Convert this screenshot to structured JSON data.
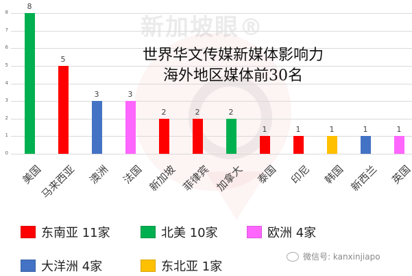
{
  "watermark": {
    "text": "新加坡眼®"
  },
  "chart_data": {
    "type": "bar",
    "title": "世界华文传媒新媒体影响力 海外地区媒体前30名",
    "title_lines": [
      "世界华文传媒新媒体影响力",
      "海外地区媒体前30名"
    ],
    "xlabel": "",
    "ylabel": "",
    "ylim": [
      0,
      8
    ],
    "yticks": [
      "0",
      "1",
      "2",
      "3",
      "4",
      "5",
      "6",
      "7",
      "8"
    ],
    "grid": true,
    "categories": [
      "美国",
      "马来西亚",
      "澳洲",
      "法国",
      "新加坡",
      "菲律宾",
      "加拿大",
      "泰国",
      "印尼",
      "韩国",
      "新西兰",
      "英国"
    ],
    "values": [
      8,
      5,
      3,
      3,
      2,
      2,
      2,
      1,
      1,
      1,
      1,
      1
    ],
    "regions": [
      "北美",
      "东南亚",
      "大洋洲",
      "欧洲",
      "东南亚",
      "东南亚",
      "北美",
      "东南亚",
      "东南亚",
      "东北亚",
      "大洋洲",
      "欧洲"
    ],
    "bar_colors": [
      "#00b050",
      "#ff0000",
      "#4472c4",
      "#ff66ff",
      "#ff0000",
      "#ff0000",
      "#00b050",
      "#ff0000",
      "#ff0000",
      "#ffc000",
      "#4472c4",
      "#ff66ff"
    ],
    "legend": [
      {
        "label": "东南亚 11家",
        "color": "#ff0000"
      },
      {
        "label": "北美 10家",
        "color": "#00b050"
      },
      {
        "label": "欧洲 4家",
        "color": "#ff66ff"
      },
      {
        "label": "大洋洲 4家",
        "color": "#4472c4"
      },
      {
        "label": "东北亚 1家",
        "color": "#ffc000"
      }
    ],
    "legend_position": "bottom"
  },
  "footer": {
    "wechat": "微信号: kanxinjiapo"
  }
}
